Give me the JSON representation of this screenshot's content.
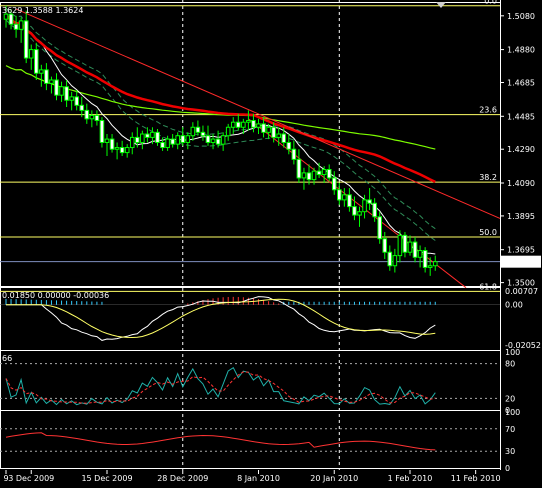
{
  "chart_data": [
    {
      "type": "candlestick",
      "symbol_quote": "3629 1.3588 1.3624",
      "price_label": "1.3624",
      "ylim": [
        1.348,
        1.515
      ],
      "y_ticks": [
        "1.5080",
        "1.4880",
        "1.4685",
        "1.4485",
        "1.4290",
        "1.4090",
        "1.3895",
        "1.3695",
        "1.3500"
      ],
      "y_tick_values": [
        1.508,
        1.488,
        1.4685,
        1.4485,
        1.429,
        1.409,
        1.3895,
        1.3695,
        1.35
      ],
      "x_ticks": [
        "9",
        "3 Dec 2009",
        "15 Dec 2009",
        "28 Dec 2009",
        "8 Jan 2010",
        "20 Jan 2010",
        "1 Feb 2010",
        "11 Feb 2010"
      ],
      "x_tick_bars": [
        0,
        5,
        20,
        35,
        50,
        65,
        80,
        93
      ],
      "candles": [
        [
          1.506,
          1.514,
          1.501,
          1.509
        ],
        [
          1.509,
          1.512,
          1.5,
          1.503
        ],
        [
          1.503,
          1.508,
          1.495,
          1.5
        ],
        [
          1.5,
          1.507,
          1.492,
          1.505
        ],
        [
          1.505,
          1.511,
          1.48,
          1.483
        ],
        [
          1.483,
          1.491,
          1.476,
          1.488
        ],
        [
          1.488,
          1.492,
          1.47,
          1.474
        ],
        [
          1.474,
          1.479,
          1.466,
          1.476
        ],
        [
          1.476,
          1.48,
          1.464,
          1.468
        ],
        [
          1.468,
          1.472,
          1.462,
          1.47
        ],
        [
          1.47,
          1.474,
          1.458,
          1.461
        ],
        [
          1.461,
          1.469,
          1.457,
          1.466
        ],
        [
          1.466,
          1.47,
          1.454,
          1.458
        ],
        [
          1.458,
          1.463,
          1.452,
          1.46
        ],
        [
          1.46,
          1.464,
          1.452,
          1.455
        ],
        [
          1.455,
          1.46,
          1.448,
          1.452
        ],
        [
          1.452,
          1.456,
          1.444,
          1.447
        ],
        [
          1.447,
          1.452,
          1.442,
          1.449
        ],
        [
          1.449,
          1.452,
          1.443,
          1.446
        ],
        [
          1.446,
          1.448,
          1.43,
          1.433
        ],
        [
          1.433,
          1.438,
          1.425,
          1.435
        ],
        [
          1.435,
          1.438,
          1.427,
          1.429
        ],
        [
          1.429,
          1.433,
          1.423,
          1.43
        ],
        [
          1.43,
          1.434,
          1.425,
          1.427
        ],
        [
          1.427,
          1.432,
          1.424,
          1.43
        ],
        [
          1.43,
          1.439,
          1.426,
          1.436
        ],
        [
          1.436,
          1.442,
          1.43,
          1.433
        ],
        [
          1.433,
          1.44,
          1.429,
          1.438
        ],
        [
          1.438,
          1.442,
          1.433,
          1.436
        ],
        [
          1.436,
          1.442,
          1.432,
          1.439
        ],
        [
          1.439,
          1.441,
          1.431,
          1.433
        ],
        [
          1.433,
          1.436,
          1.428,
          1.43
        ],
        [
          1.43,
          1.437,
          1.428,
          1.435
        ],
        [
          1.435,
          1.438,
          1.43,
          1.432
        ],
        [
          1.432,
          1.439,
          1.429,
          1.437
        ],
        [
          1.437,
          1.442,
          1.431,
          1.433
        ],
        [
          1.433,
          1.439,
          1.429,
          1.437
        ],
        [
          1.437,
          1.445,
          1.434,
          1.442
        ],
        [
          1.442,
          1.446,
          1.437,
          1.439
        ],
        [
          1.439,
          1.443,
          1.434,
          1.437
        ],
        [
          1.437,
          1.443,
          1.431,
          1.433
        ],
        [
          1.433,
          1.438,
          1.429,
          1.435
        ],
        [
          1.435,
          1.44,
          1.43,
          1.432
        ],
        [
          1.432,
          1.439,
          1.428,
          1.437
        ],
        [
          1.437,
          1.444,
          1.434,
          1.442
        ],
        [
          1.442,
          1.448,
          1.438,
          1.445
        ],
        [
          1.445,
          1.45,
          1.44,
          1.442
        ],
        [
          1.442,
          1.447,
          1.438,
          1.445
        ],
        [
          1.445,
          1.452,
          1.44,
          1.446
        ],
        [
          1.446,
          1.45,
          1.439,
          1.442
        ],
        [
          1.442,
          1.447,
          1.438,
          1.444
        ],
        [
          1.444,
          1.448,
          1.436,
          1.439
        ],
        [
          1.439,
          1.444,
          1.435,
          1.442
        ],
        [
          1.442,
          1.445,
          1.433,
          1.436
        ],
        [
          1.436,
          1.442,
          1.431,
          1.438
        ],
        [
          1.438,
          1.442,
          1.43,
          1.433
        ],
        [
          1.433,
          1.438,
          1.426,
          1.429
        ],
        [
          1.429,
          1.434,
          1.42,
          1.423
        ],
        [
          1.423,
          1.429,
          1.409,
          1.412
        ],
        [
          1.412,
          1.418,
          1.405,
          1.415
        ],
        [
          1.415,
          1.42,
          1.408,
          1.411
        ],
        [
          1.411,
          1.418,
          1.408,
          1.416
        ],
        [
          1.416,
          1.421,
          1.412,
          1.414
        ],
        [
          1.414,
          1.419,
          1.409,
          1.417
        ],
        [
          1.417,
          1.42,
          1.41,
          1.412
        ],
        [
          1.412,
          1.416,
          1.402,
          1.405
        ],
        [
          1.405,
          1.409,
          1.396,
          1.399
        ],
        [
          1.399,
          1.406,
          1.395,
          1.402
        ],
        [
          1.402,
          1.406,
          1.392,
          1.395
        ],
        [
          1.395,
          1.401,
          1.387,
          1.39
        ],
        [
          1.39,
          1.395,
          1.383,
          1.392
        ],
        [
          1.392,
          1.402,
          1.388,
          1.399
        ],
        [
          1.399,
          1.406,
          1.393,
          1.397
        ],
        [
          1.397,
          1.4,
          1.386,
          1.389
        ],
        [
          1.389,
          1.392,
          1.373,
          1.376
        ],
        [
          1.376,
          1.38,
          1.364,
          1.368
        ],
        [
          1.368,
          1.372,
          1.357,
          1.36
        ],
        [
          1.36,
          1.37,
          1.356,
          1.366
        ],
        [
          1.366,
          1.381,
          1.362,
          1.378
        ],
        [
          1.378,
          1.38,
          1.365,
          1.368
        ],
        [
          1.368,
          1.378,
          1.366,
          1.374
        ],
        [
          1.374,
          1.377,
          1.362,
          1.365
        ],
        [
          1.365,
          1.372,
          1.359,
          1.369
        ],
        [
          1.369,
          1.371,
          1.356,
          1.359
        ],
        [
          1.359,
          1.365,
          1.354,
          1.36
        ],
        [
          1.36,
          1.366,
          1.357,
          1.3624
        ]
      ],
      "fibonacci": [
        {
          "label": "0.0",
          "price": 1.514
        },
        {
          "label": "23.6",
          "price": 1.4495
        },
        {
          "label": "38.2",
          "price": 1.4095
        },
        {
          "label": "50.0",
          "price": 1.377
        },
        {
          "label": "61.8",
          "price": 1.3448
        }
      ],
      "colors": {
        "up": "#00ff00",
        "down": "#00ff00",
        "up_body": "#000000",
        "down_body": "#ffffff",
        "fib": "#ffff66",
        "trend": "#ff2a2a",
        "ma_slow": "#ee0000",
        "ma_mid": "#7cfc00",
        "ma_fast": "#ffffff",
        "envelope": "#2e8b57",
        "grid": "#aaaaaa"
      }
    },
    {
      "type": "macd",
      "header": "0.01850 0.00000 -0.00036",
      "y_ticks": [
        "0.00707",
        "0.00",
        "-0.02052"
      ],
      "ylim": [
        -0.023,
        0.008
      ]
    },
    {
      "type": "stochastic",
      "header": "66",
      "y_ticks": [
        "100",
        "80",
        "20",
        "0"
      ],
      "ylim": [
        0,
        100
      ]
    },
    {
      "type": "rsi-like",
      "y_ticks": [
        "100",
        "70",
        "30",
        "0"
      ],
      "ylim": [
        0,
        100
      ]
    }
  ]
}
